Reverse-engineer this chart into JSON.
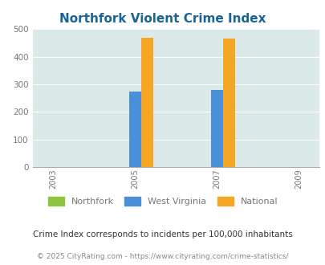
{
  "title": "Northfork Violent Crime Index",
  "title_color": "#1a6496",
  "title_fontsize": 11,
  "years": [
    2003,
    2005,
    2007,
    2009
  ],
  "bar_years": [
    2005,
    2007
  ],
  "northfork_values": [
    0,
    0
  ],
  "west_virginia_values": [
    275,
    280
  ],
  "national_values": [
    470,
    465
  ],
  "bar_width": 0.3,
  "colors": {
    "northfork": "#8dc63f",
    "west_virginia": "#4a90d9",
    "national": "#f5a623"
  },
  "plot_bg_color": "#dce9e9",
  "ylim": [
    0,
    500
  ],
  "yticks": [
    0,
    100,
    200,
    300,
    400,
    500
  ],
  "xlim": [
    2002.5,
    2009.5
  ],
  "legend_labels": [
    "Northfork",
    "West Virginia",
    "National"
  ],
  "footnote": "Crime Index corresponds to incidents per 100,000 inhabitants",
  "footnote2": "© 2025 CityRating.com - https://www.cityrating.com/crime-statistics/",
  "footnote_color": "#333333",
  "footnote2_color": "#888888",
  "grid_color": "#ffffff",
  "tick_label_color": "#777777",
  "spine_color": "#aaaaaa"
}
